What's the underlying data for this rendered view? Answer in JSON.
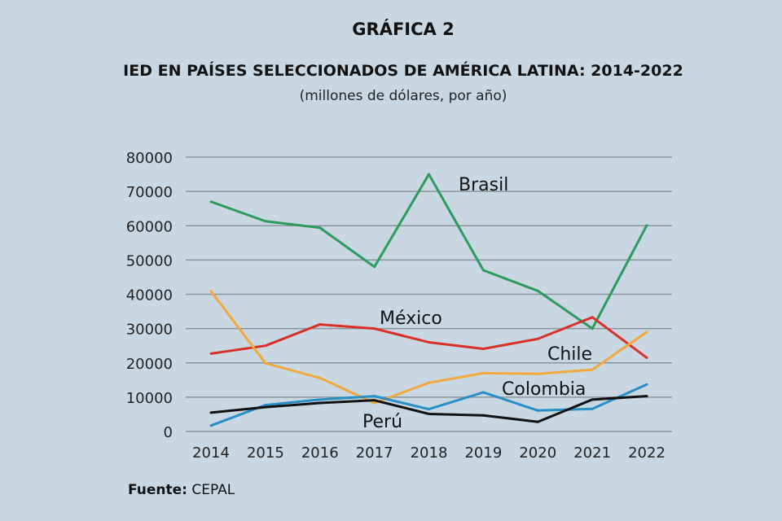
{
  "title": "GRÁFICA 2",
  "chart_data": {
    "type": "line",
    "title": "IED EN PAÍSES SELECCIONADOS DE AMÉRICA LATINA: 2014-2022",
    "subtitle": "(millones de dólares, por año)",
    "x": [
      "2014",
      "2015",
      "2016",
      "2017",
      "2018",
      "2019",
      "2020",
      "2021",
      "2022"
    ],
    "ylim": [
      0,
      80000
    ],
    "yticks": [
      0,
      10000,
      20000,
      30000,
      40000,
      50000,
      60000,
      70000,
      80000
    ],
    "grid": true,
    "series": [
      {
        "name": "Brasil",
        "color": "#2e9a5e",
        "values": [
          67000,
          61300,
          59400,
          48000,
          75000,
          47000,
          41000,
          30000,
          60100
        ]
      },
      {
        "name": "México",
        "color": "#d9302a",
        "values": [
          22700,
          25000,
          31200,
          30000,
          26000,
          24100,
          27000,
          33300,
          21500
        ]
      },
      {
        "name": "Chile",
        "color": "#f2a93b",
        "values": [
          40900,
          19900,
          15600,
          8300,
          14200,
          17000,
          16800,
          18000,
          29000
        ]
      },
      {
        "name": "Colombia",
        "color": "#2a8fc4",
        "values": [
          1700,
          7700,
          9300,
          10300,
          6500,
          11400,
          6100,
          6600,
          13700
        ]
      },
      {
        "name": "Perú",
        "color": "#111111",
        "values": [
          5500,
          7100,
          8300,
          9100,
          5100,
          4700,
          2800,
          9300,
          10300
        ]
      }
    ]
  },
  "source": {
    "label": "Fuente:",
    "value": "CEPAL"
  }
}
